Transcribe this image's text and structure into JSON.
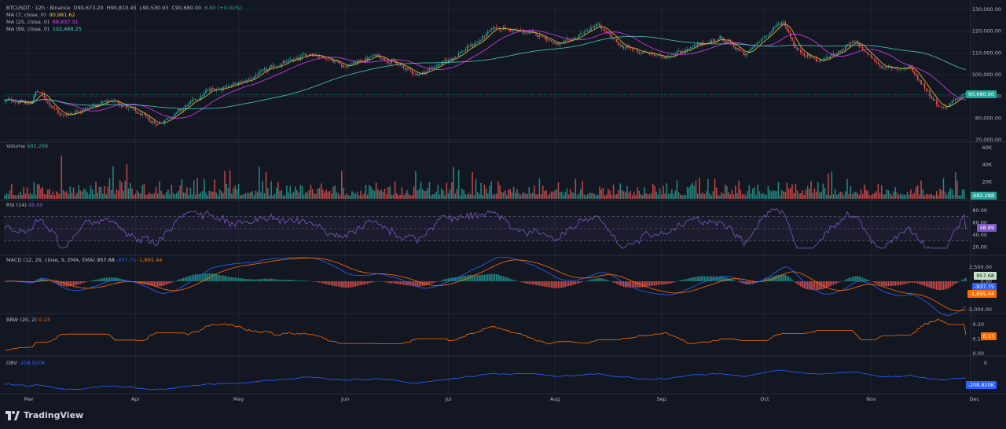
{
  "symbol_line": "BTCUSDT · 12h · Binance",
  "ohlc": {
    "open": "O90,673.20",
    "high": "H90,810.45",
    "low": "L90,530.93",
    "close": "C90,680.00",
    "change": "6.80 (+0.01%)"
  },
  "ma_legends": [
    {
      "label": "MA (7, close, 0)",
      "value": "90,981.62",
      "color": "#f5c542"
    },
    {
      "label": "MA (25, close, 0)",
      "value": "88,837.31",
      "color": "#e040fb"
    },
    {
      "label": "MA (99, close, 0)",
      "value": "102,489.25",
      "color": "#4dd0c4"
    }
  ],
  "price_tag": "90,680.00",
  "volume_label": "Volume",
  "volume_value": "682.288",
  "rsi_label": "RSI (14)",
  "rsi_value": "48.89",
  "macd_label": "MACD (12, 26, close, 9, EMA, EMA)",
  "macd_values": [
    "957.68",
    "-937.75",
    "-1,895.44"
  ],
  "bbw_label": "BBW (20, 2)",
  "bbw_value": "0.13",
  "obv_label": "OBV",
  "obv_value": "-208.820K",
  "logo_text": "TradingView",
  "colors": {
    "up": "#26a69a",
    "down": "#ef5350",
    "grid": "#1f2330",
    "text": "#b2b5be",
    "ma7": "#f5c542",
    "ma25": "#e040fb",
    "ma99": "#4dd0c4",
    "rsi": "#7e57c2",
    "macd": "#2962ff",
    "signal": "#ff6d00",
    "bbw": "#ff6d00",
    "obv": "#2962ff"
  },
  "chart_data": [
    {
      "type": "candlestick",
      "title": "BTCUSDT · 12h · Binance",
      "x_ticks": [
        "Mar",
        "Apr",
        "May",
        "Jun",
        "Jul",
        "Aug",
        "Sep",
        "Oct",
        "Nov",
        "Dec"
      ],
      "y_ticks": [
        "130,000.00",
        "120,000.00",
        "110,000.00",
        "100,000.00",
        "90,000.00",
        "80,000.00",
        "70,000.00"
      ],
      "ylim": [
        70000,
        130000
      ],
      "approx_close_path": [
        {
          "date": "Feb 25",
          "close": 88000
        },
        {
          "date": "Mar 1",
          "close": 86000
        },
        {
          "date": "Mar 3",
          "close": 93000
        },
        {
          "date": "Mar 10",
          "close": 81000
        },
        {
          "date": "Mar 20",
          "close": 86000
        },
        {
          "date": "Mar 26",
          "close": 88000
        },
        {
          "date": "Apr 7",
          "close": 77000
        },
        {
          "date": "Apr 14",
          "close": 84000
        },
        {
          "date": "Apr 22",
          "close": 93000
        },
        {
          "date": "May 1",
          "close": 96000
        },
        {
          "date": "May 10",
          "close": 103000
        },
        {
          "date": "May 22",
          "close": 110000
        },
        {
          "date": "Jun 1",
          "close": 104000
        },
        {
          "date": "Jun 10",
          "close": 109000
        },
        {
          "date": "Jun 22",
          "close": 100000
        },
        {
          "date": "Jul 1",
          "close": 107000
        },
        {
          "date": "Jul 10",
          "close": 116000
        },
        {
          "date": "Jul 14",
          "close": 122000
        },
        {
          "date": "Jul 28",
          "close": 118000
        },
        {
          "date": "Aug 2",
          "close": 113000
        },
        {
          "date": "Aug 13",
          "close": 123000
        },
        {
          "date": "Aug 20",
          "close": 113000
        },
        {
          "date": "Sep 1",
          "close": 108000
        },
        {
          "date": "Sep 18",
          "close": 117000
        },
        {
          "date": "Sep 25",
          "close": 109000
        },
        {
          "date": "Oct 1",
          "close": 118000
        },
        {
          "date": "Oct 6",
          "close": 125000
        },
        {
          "date": "Oct 10",
          "close": 111000
        },
        {
          "date": "Oct 17",
          "close": 106000
        },
        {
          "date": "Oct 27",
          "close": 115000
        },
        {
          "date": "Nov 4",
          "close": 103000
        },
        {
          "date": "Nov 12",
          "close": 103000
        },
        {
          "date": "Nov 21",
          "close": 84000
        },
        {
          "date": "Nov 28",
          "close": 91000
        },
        {
          "date": "Dec 1",
          "close": 90680
        }
      ],
      "last": {
        "open": 90673.2,
        "high": 90810.45,
        "low": 90530.93,
        "close": 90680.0
      }
    },
    {
      "type": "bar",
      "title": "Volume",
      "y_ticks": [
        "60K",
        "40K",
        "20K"
      ],
      "last": 682.288
    },
    {
      "type": "line",
      "title": "RSI (14)",
      "y_ticks": [
        "80.00",
        "60.00",
        "40.00",
        "20.00"
      ],
      "bands": [
        70,
        50,
        30
      ],
      "last": 48.89
    },
    {
      "type": "line",
      "title": "MACD (12, 26, close, 9, EMA, EMA)",
      "y_ticks": [
        "2,500.00",
        "0.00",
        "-2,500.00",
        "-5,000.00"
      ],
      "last": {
        "histogram": 957.68,
        "macd": -937.75,
        "signal": -1895.44
      }
    },
    {
      "type": "line",
      "title": "BBW (20, 2)",
      "y_ticks": [
        "0.20",
        "0.10",
        "0.00"
      ],
      "last": 0.13
    },
    {
      "type": "line",
      "title": "OBV",
      "y_ticks": [
        "0"
      ],
      "last": "-208.820K"
    }
  ]
}
